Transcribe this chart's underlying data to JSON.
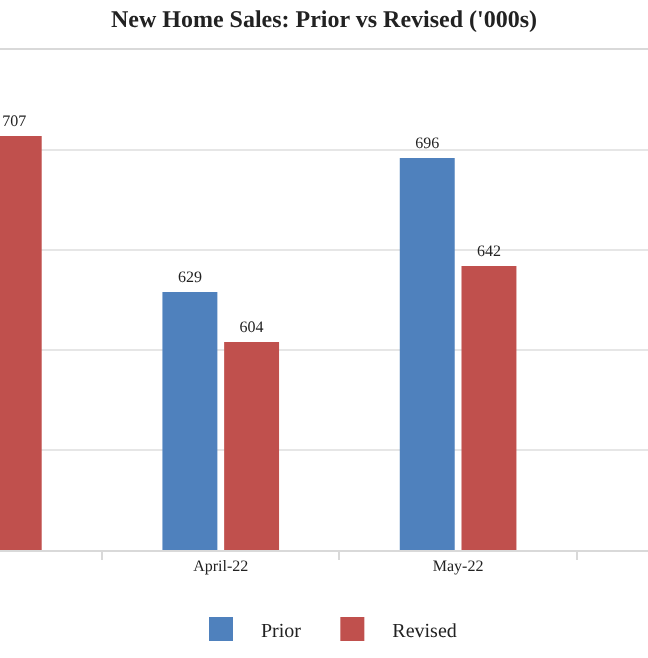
{
  "chart_data": {
    "type": "bar",
    "title": "New Home Sales: Prior vs Revised ('000s)",
    "categories": [
      null,
      "April-22",
      "May-22"
    ],
    "series": [
      {
        "name": "Prior",
        "color": "#4f81bd",
        "values": [
          null,
          629,
          696
        ]
      },
      {
        "name": "Revised",
        "color": "#c0504d",
        "values": [
          707,
          604,
          642
        ]
      }
    ],
    "ylim": [
      500,
      750
    ],
    "yticks": [
      {
        "value": 550,
        "label": null
      },
      {
        "value": 600,
        "label": null
      },
      {
        "value": 650,
        "label": null
      },
      {
        "value": 700,
        "label": null
      }
    ],
    "tick_labels": "x",
    "grid": "y",
    "data_labels": true,
    "legend": "bottom"
  }
}
